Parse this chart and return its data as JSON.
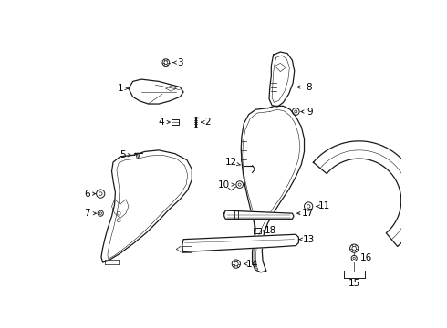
{
  "bg_color": "#ffffff",
  "line_color": "#1a1a1a",
  "text_color": "#000000",
  "fig_w": 4.9,
  "fig_h": 3.6,
  "dpi": 100
}
